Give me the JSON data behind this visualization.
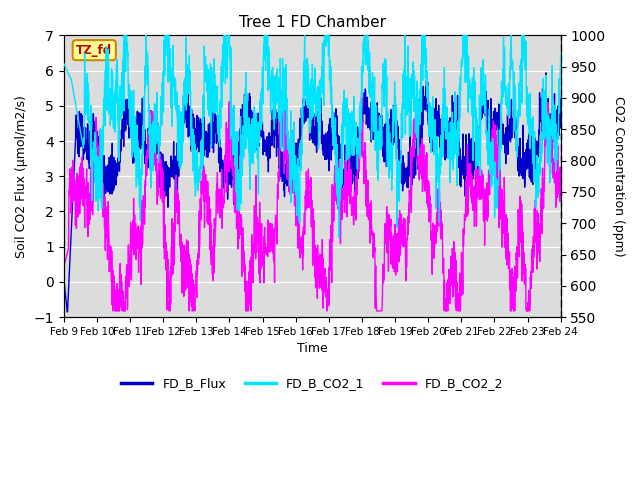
{
  "title": "Tree 1 FD Chamber",
  "xlabel": "Time",
  "ylabel_left": "Soil CO2 Flux (μmol/m2/s)",
  "ylabel_right": "CO2 Concentration (ppm)",
  "ylim_left": [
    -1.0,
    7.0
  ],
  "ylim_right": [
    550,
    1000
  ],
  "yticks_left": [
    -1.0,
    0.0,
    1.0,
    2.0,
    3.0,
    4.0,
    5.0,
    6.0,
    7.0
  ],
  "yticks_right": [
    550,
    600,
    650,
    700,
    750,
    800,
    850,
    900,
    950,
    1000
  ],
  "xtick_labels": [
    "Feb 9",
    "Feb 10",
    "Feb 11",
    "Feb 12",
    "Feb 13",
    "Feb 14",
    "Feb 15",
    "Feb 16",
    "Feb 17",
    "Feb 18",
    "Feb 19",
    "Feb 20",
    "Feb 21",
    "Feb 22",
    "Feb 23",
    "Feb 24"
  ],
  "color_flux": "#0000CD",
  "color_co2_1": "#00E5FF",
  "color_co2_2": "#FF00FF",
  "legend_labels": [
    "FD_B_Flux",
    "FD_B_CO2_1",
    "FD_B_CO2_2"
  ],
  "annotation_text": "TZ_fd",
  "annotation_color": "#CC0000",
  "annotation_bg": "#FFFF99",
  "annotation_border": "#CC8800",
  "background_color": "#DCDCDC",
  "grid_color": "#FFFFFF",
  "n_points": 2000,
  "seed": 7
}
